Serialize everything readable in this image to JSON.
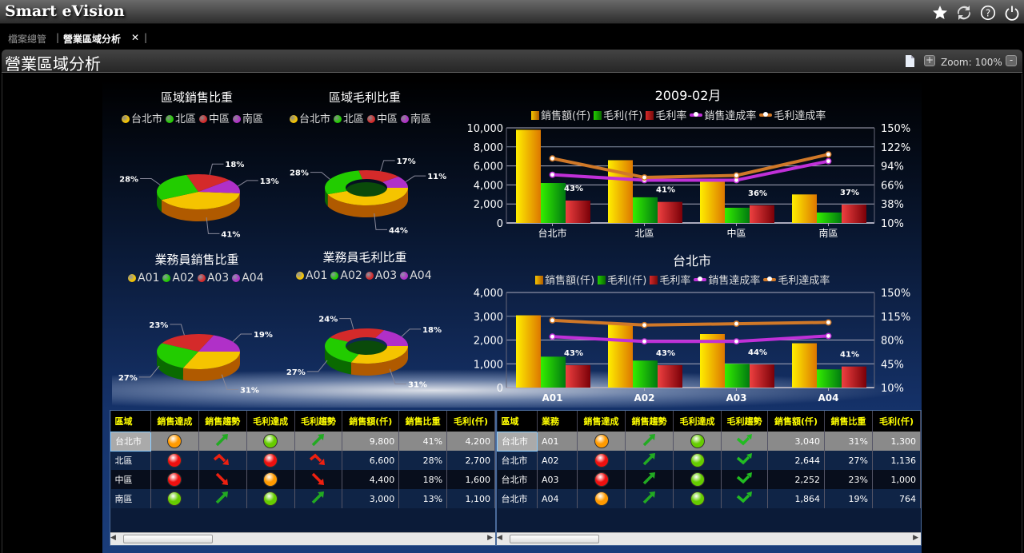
{
  "app": {
    "title": "Smart eVision",
    "icons": [
      "star-icon",
      "refresh-icon",
      "help-icon",
      "power-icon"
    ]
  },
  "tabs": [
    {
      "label": "檔案總管",
      "active": false
    },
    {
      "label": "營業區域分析",
      "active": true,
      "close": "✕"
    }
  ],
  "tab_separator": "|",
  "header": {
    "title": "營業區域分析",
    "zoom_in": "+",
    "zoom_out": "-",
    "zoom_label": "Zoom: 100%"
  },
  "colors": {
    "yellow": "#f5c400",
    "green": "#22cc00",
    "red": "#d42a2a",
    "purple": "#b030c8",
    "sales_line": "#c030d8",
    "profit_line": "#d07828",
    "header_text": "#ffff00"
  },
  "pies": [
    {
      "title": "區域銷售比重",
      "labels": [
        "台北市",
        "北區",
        "中區",
        "南區"
      ],
      "values": [
        41,
        28,
        18,
        13
      ],
      "donut": false
    },
    {
      "title": "區域毛利比重",
      "labels": [
        "台北市",
        "北區",
        "中區",
        "南區"
      ],
      "values": [
        44,
        28,
        17,
        11
      ],
      "donut": true
    },
    {
      "title": "業務員銷售比重",
      "labels": [
        "A01",
        "A02",
        "A03",
        "A04"
      ],
      "values": [
        31,
        27,
        23,
        19
      ],
      "donut": false
    },
    {
      "title": "業務員毛利比重",
      "labels": [
        "A01",
        "A02",
        "A03",
        "A04"
      ],
      "values": [
        31,
        27,
        24,
        18
      ],
      "donut": true
    }
  ],
  "chart_data": [
    {
      "type": "bar+line",
      "title": "2009-02月",
      "categories": [
        "台北市",
        "北區",
        "中區",
        "南區"
      ],
      "legend": [
        "銷售額(仟)",
        "毛利(仟)",
        "毛利率",
        "銷售達成率",
        "毛利達成率"
      ],
      "series": [
        {
          "name": "銷售額(仟)",
          "kind": "bar",
          "axis": "left",
          "values": [
            9800,
            6600,
            4400,
            3000
          ]
        },
        {
          "name": "毛利(仟)",
          "kind": "bar",
          "axis": "left",
          "values": [
            4200,
            2700,
            1600,
            1100
          ]
        },
        {
          "name": "毛利率",
          "kind": "bar",
          "axis": "right",
          "values": [
            43,
            41,
            36,
            37
          ],
          "data_labels": [
            "43%",
            "41%",
            "36%",
            "37%"
          ]
        },
        {
          "name": "銷售達成率",
          "kind": "line",
          "axis": "right",
          "values": [
            81,
            73,
            73,
            101
          ]
        },
        {
          "name": "毛利達成率",
          "kind": "line",
          "axis": "right",
          "values": [
            105,
            77,
            80,
            111
          ]
        }
      ],
      "y_left": {
        "range": [
          0,
          10000
        ],
        "ticks": [
          "0",
          "2,000",
          "4,000",
          "6,000",
          "8,000",
          "10,000"
        ]
      },
      "y_right": {
        "range": [
          10,
          150
        ],
        "ticks": [
          "10%",
          "38%",
          "66%",
          "94%",
          "122%",
          "150%"
        ]
      },
      "grid": true,
      "legend_position": "top"
    },
    {
      "type": "bar+line",
      "title": "台北市",
      "categories": [
        "A01",
        "A02",
        "A03",
        "A04"
      ],
      "legend": [
        "銷售額(仟)",
        "毛利(仟)",
        "毛利率",
        "銷售達成率",
        "毛利達成率"
      ],
      "series": [
        {
          "name": "銷售額(仟)",
          "kind": "bar",
          "axis": "left",
          "values": [
            3040,
            2644,
            2252,
            1864
          ]
        },
        {
          "name": "毛利(仟)",
          "kind": "bar",
          "axis": "left",
          "values": [
            1300,
            1136,
            1000,
            764
          ]
        },
        {
          "name": "毛利率",
          "kind": "bar",
          "axis": "right",
          "values": [
            43,
            43,
            44,
            41
          ],
          "data_labels": [
            "43%",
            "43%",
            "44%",
            "41%"
          ]
        },
        {
          "name": "銷售達成率",
          "kind": "line",
          "axis": "right",
          "values": [
            85,
            78,
            78,
            86
          ]
        },
        {
          "name": "毛利達成率",
          "kind": "line",
          "axis": "right",
          "values": [
            109,
            102,
            104,
            106
          ]
        }
      ],
      "y_left": {
        "range": [
          0,
          4000
        ],
        "ticks": [
          "0",
          "1,000",
          "2,000",
          "3,000",
          "4,000"
        ]
      },
      "y_right": {
        "range": [
          10,
          150
        ],
        "ticks": [
          "10%",
          "45%",
          "80%",
          "115%",
          "150%"
        ]
      },
      "grid": true,
      "legend_position": "top"
    }
  ],
  "region_table": {
    "headers": [
      "區域",
      "銷售達成",
      "銷售趨勢",
      "毛利達成",
      "毛利趨勢",
      "銷售額(仟)",
      "銷售比重",
      "毛利(仟)"
    ],
    "rows": [
      {
        "region": "台北市",
        "sales_light": "orange",
        "sales_trend": "up",
        "profit_light": "green",
        "profit_trend": "up",
        "sales": "9,800",
        "share": "41%",
        "profit": "4,200"
      },
      {
        "region": "北區",
        "sales_light": "red",
        "sales_trend": "peak-down",
        "profit_light": "red",
        "profit_trend": "peak-down",
        "sales": "6,600",
        "share": "28%",
        "profit": "2,700"
      },
      {
        "region": "中區",
        "sales_light": "red",
        "sales_trend": "down",
        "profit_light": "orange",
        "profit_trend": "down",
        "sales": "4,400",
        "share": "18%",
        "profit": "1,600"
      },
      {
        "region": "南區",
        "sales_light": "green",
        "sales_trend": "up",
        "profit_light": "green",
        "profit_trend": "up",
        "sales": "3,000",
        "share": "13%",
        "profit": "1,100"
      }
    ]
  },
  "rep_table": {
    "headers": [
      "區域",
      "業務",
      "銷售達成",
      "銷售趨勢",
      "毛利達成",
      "毛利趨勢",
      "銷售額(仟)",
      "銷售比重",
      "毛利(仟)"
    ],
    "rows": [
      {
        "region": "台北市",
        "rep": "A01",
        "sales_light": "orange",
        "sales_trend": "up",
        "profit_light": "green",
        "profit_trend": "check",
        "sales": "3,040",
        "share": "31%",
        "profit": "1,300"
      },
      {
        "region": "台北市",
        "rep": "A02",
        "sales_light": "red",
        "sales_trend": "up",
        "profit_light": "green",
        "profit_trend": "check",
        "sales": "2,644",
        "share": "27%",
        "profit": "1,136"
      },
      {
        "region": "台北市",
        "rep": "A03",
        "sales_light": "red",
        "sales_trend": "up",
        "profit_light": "green",
        "profit_trend": "check",
        "sales": "2,252",
        "share": "23%",
        "profit": "1,000"
      },
      {
        "region": "台北市",
        "rep": "A04",
        "sales_light": "orange",
        "sales_trend": "up",
        "profit_light": "green",
        "profit_trend": "check",
        "sales": "1,864",
        "share": "19%",
        "profit": "764"
      }
    ]
  }
}
